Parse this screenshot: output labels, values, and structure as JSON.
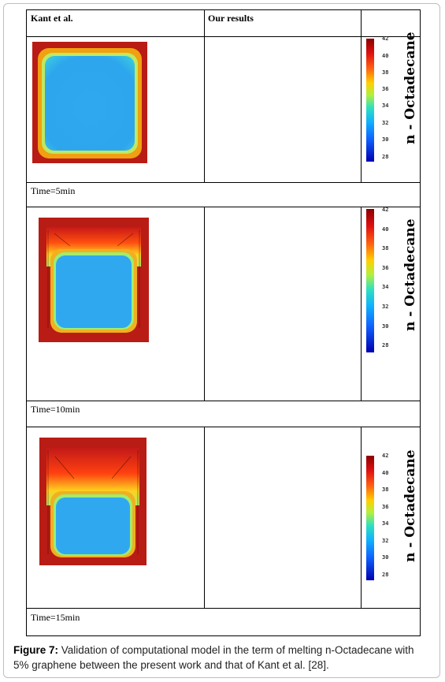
{
  "table": {
    "header_left": "Kant et al.",
    "header_right": "Our results",
    "rows": [
      {
        "time_label": "Time=5min"
      },
      {
        "time_label": "Time=10min"
      },
      {
        "time_label": "Time=15min"
      }
    ]
  },
  "colorbar": {
    "label": "n - Octadecane",
    "ticks": [
      "42",
      "40",
      "38",
      "36",
      "34",
      "32",
      "30",
      "28"
    ]
  },
  "caption": {
    "prefix": "Figure 7:",
    "text": "Validation of computational model in the term of melting n-Octadecane with 5% graphene between the present work and that of Kant et al. [28]."
  }
}
